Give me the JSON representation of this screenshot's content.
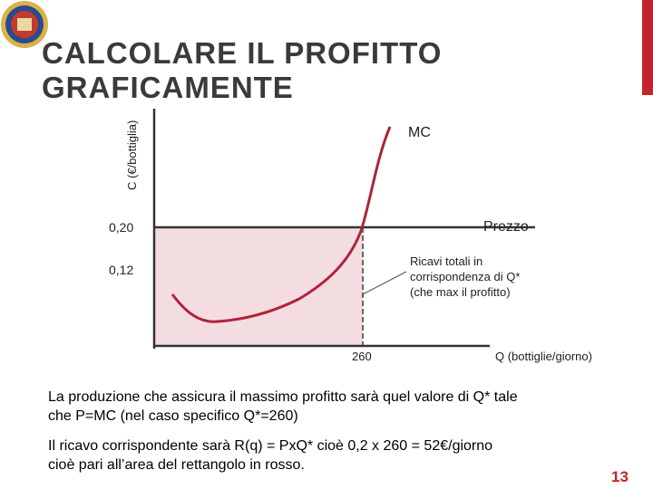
{
  "header": {
    "title_lines": [
      "CALCOLARE IL PROFITTO",
      "GRAFICAMENTE"
    ]
  },
  "graph": {
    "y_axis_label": "C (€/bottiglia)",
    "x_axis_label": "Q (bottiglie/giorno)",
    "curve_label": "MC",
    "price_label": "Prezzo",
    "y_labels": [
      "0,20",
      "0,12"
    ],
    "x_label": "260",
    "annotation_lines": [
      "Ricavi totali in",
      "corrispondenza di Q*",
      "(che max il profitto)"
    ]
  },
  "body": {
    "paragraphs": [
      [
        "La produzione che assicura il massimo profitto sarà quel valore di Q* tale",
        "che P=MC (nel caso specifico Q*=260)"
      ],
      [
        "Il ricavo corrispondente sarà R(q) = PxQ* cioè 0,2 x 260 = 52€/giorno",
        "cioè pari all’area del rettangolo in rosso."
      ]
    ]
  },
  "footer": {
    "page_number": "13"
  }
}
